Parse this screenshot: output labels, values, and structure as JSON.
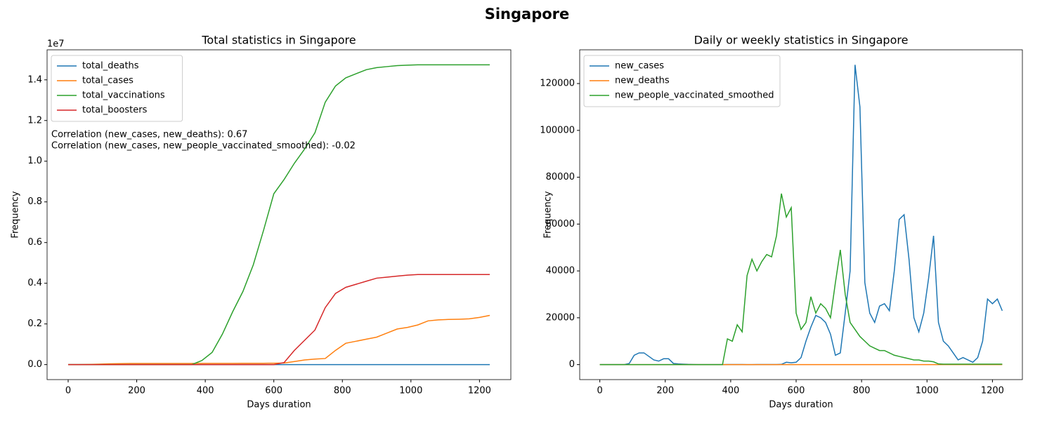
{
  "title": "Singapore",
  "chart_data": [
    {
      "type": "line",
      "title": "Total statistics in Singapore",
      "xlabel": "Days duration",
      "ylabel": "Frequency",
      "offset_label": "1e7",
      "legend": "upper left",
      "annotations": [
        "Correlation (new_cases, new_deaths): 0.67",
        "Correlation (new_cases, new_people_vaccinated_smoothed): -0.02"
      ],
      "x": [
        0,
        30,
        60,
        90,
        120,
        150,
        180,
        210,
        240,
        270,
        300,
        330,
        360,
        390,
        420,
        450,
        480,
        510,
        540,
        570,
        600,
        630,
        660,
        690,
        720,
        750,
        780,
        810,
        840,
        870,
        900,
        930,
        960,
        990,
        1020,
        1050,
        1080,
        1110,
        1140,
        1170,
        1200,
        1230
      ],
      "xlim": [
        -61.5,
        1291.5
      ],
      "xticks": [
        0,
        200,
        400,
        600,
        800,
        1000,
        1200
      ],
      "ylim": [
        -737000,
        15476000
      ],
      "yticks": [
        {
          "value": 0,
          "label": "0.0"
        },
        {
          "value": 2000000,
          "label": "0.2"
        },
        {
          "value": 4000000,
          "label": "0.4"
        },
        {
          "value": 6000000,
          "label": "0.6"
        },
        {
          "value": 8000000,
          "label": "0.8"
        },
        {
          "value": 10000000,
          "label": "1.0"
        },
        {
          "value": 12000000,
          "label": "1.2"
        },
        {
          "value": 14000000,
          "label": "1.4"
        }
      ],
      "series": [
        {
          "name": "total_deaths",
          "color": "#1f77b4",
          "values": [
            0,
            0,
            0,
            0,
            10,
            20,
            25,
            27,
            27,
            28,
            28,
            28,
            28,
            29,
            30,
            32,
            34,
            36,
            40,
            50,
            60,
            100,
            300,
            600,
            800,
            830,
            900,
            1100,
            1300,
            1400,
            1500,
            1550,
            1600,
            1620,
            1650,
            1680,
            1700,
            1710,
            1720,
            1730,
            1740,
            1750
          ]
        },
        {
          "name": "total_cases",
          "color": "#ff7f0e",
          "values": [
            0,
            2000,
            10000,
            20000,
            40000,
            50000,
            57000,
            57500,
            58000,
            58000,
            58000,
            58000,
            58500,
            59000,
            60000,
            61000,
            62000,
            63000,
            65000,
            67000,
            70000,
            80000,
            150000,
            230000,
            270000,
            300000,
            700000,
            1050000,
            1150000,
            1250000,
            1350000,
            1550000,
            1750000,
            1830000,
            1950000,
            2150000,
            2200000,
            2220000,
            2230000,
            2250000,
            2320000,
            2420000
          ]
        },
        {
          "name": "total_vaccinations",
          "color": "#2ca02c",
          "values": [
            0,
            0,
            0,
            0,
            0,
            0,
            0,
            0,
            0,
            0,
            0,
            0,
            0,
            200000,
            600000,
            1500000,
            2600000,
            3600000,
            4900000,
            6600000,
            8400000,
            9100000,
            9900000,
            10600000,
            11400000,
            12900000,
            13700000,
            14100000,
            14300000,
            14500000,
            14600000,
            14650000,
            14700000,
            14720000,
            14740000,
            14740000,
            14740000,
            14740000,
            14740000,
            14740000,
            14740000,
            14740000
          ]
        },
        {
          "name": "total_boosters",
          "color": "#d62728",
          "values": [
            0,
            0,
            0,
            0,
            0,
            0,
            0,
            0,
            0,
            0,
            0,
            0,
            0,
            0,
            0,
            0,
            0,
            0,
            0,
            0,
            0,
            100000,
            700000,
            1200000,
            1700000,
            2800000,
            3500000,
            3800000,
            3950000,
            4100000,
            4250000,
            4300000,
            4350000,
            4400000,
            4430000,
            4430000,
            4430000,
            4430000,
            4430000,
            4430000,
            4430000,
            4430000
          ]
        }
      ]
    },
    {
      "type": "line",
      "title": "Daily or weekly statistics in Singapore",
      "xlabel": "Days duration",
      "ylabel": "Frequency",
      "legend": "upper left",
      "x": [
        0,
        15,
        30,
        45,
        60,
        75,
        90,
        105,
        120,
        135,
        150,
        165,
        180,
        195,
        210,
        225,
        240,
        255,
        270,
        285,
        300,
        315,
        330,
        345,
        360,
        375,
        390,
        405,
        420,
        435,
        450,
        465,
        480,
        495,
        510,
        525,
        540,
        555,
        570,
        585,
        600,
        615,
        630,
        645,
        660,
        675,
        690,
        705,
        720,
        735,
        750,
        765,
        780,
        795,
        810,
        825,
        840,
        855,
        870,
        885,
        900,
        915,
        930,
        945,
        960,
        975,
        990,
        1005,
        1020,
        1035,
        1050,
        1065,
        1080,
        1095,
        1110,
        1125,
        1140,
        1155,
        1170,
        1185,
        1200,
        1215,
        1230
      ],
      "xlim": [
        -61.5,
        1291.5
      ],
      "xticks": [
        0,
        200,
        400,
        600,
        800,
        1000,
        1200
      ],
      "ylim": [
        -6400,
        134400
      ],
      "yticks": [
        0,
        20000,
        40000,
        60000,
        80000,
        100000,
        120000
      ],
      "series": [
        {
          "name": "new_cases",
          "color": "#1f77b4",
          "values": [
            0,
            0,
            0,
            0,
            0,
            0,
            500,
            4000,
            5000,
            5000,
            3500,
            2000,
            1500,
            2500,
            2500,
            500,
            300,
            200,
            100,
            50,
            20,
            20,
            20,
            20,
            20,
            20,
            30,
            30,
            30,
            30,
            20,
            20,
            30,
            50,
            50,
            50,
            50,
            100,
            1000,
            800,
            1000,
            3000,
            10000,
            16000,
            21000,
            20000,
            18000,
            13000,
            4000,
            5000,
            22000,
            40000,
            128000,
            110000,
            35000,
            22000,
            18000,
            25000,
            26000,
            23000,
            40000,
            62000,
            64000,
            45000,
            20000,
            14000,
            22000,
            37000,
            55000,
            18000,
            10000,
            8000,
            5000,
            2000,
            3000,
            2000,
            1000,
            3000,
            10000,
            28000,
            26000,
            28000,
            23000
          ]
        },
        {
          "name": "new_deaths",
          "color": "#ff7f0e",
          "values": [
            0,
            0,
            0,
            0,
            0,
            0,
            0,
            0,
            0,
            0,
            0,
            0,
            0,
            0,
            0,
            0,
            0,
            0,
            0,
            0,
            0,
            0,
            0,
            0,
            0,
            0,
            0,
            0,
            0,
            0,
            0,
            0,
            0,
            0,
            0,
            0,
            0,
            0,
            0,
            0,
            0,
            2,
            5,
            8,
            10,
            12,
            10,
            5,
            3,
            2,
            5,
            8,
            12,
            10,
            5,
            4,
            3,
            4,
            4,
            3,
            4,
            5,
            5,
            3,
            2,
            2,
            3,
            3,
            4,
            2,
            1,
            1,
            1,
            0,
            0,
            0,
            0,
            1,
            1,
            2,
            2,
            2,
            2
          ]
        },
        {
          "name": "new_people_vaccinated_smoothed",
          "color": "#2ca02c",
          "values": [
            0,
            0,
            0,
            0,
            0,
            0,
            0,
            0,
            0,
            0,
            0,
            0,
            0,
            0,
            0,
            0,
            0,
            0,
            0,
            0,
            0,
            0,
            0,
            0,
            0,
            0,
            11000,
            10000,
            17000,
            14000,
            38000,
            45000,
            40000,
            44000,
            47000,
            46000,
            55000,
            73000,
            63000,
            67000,
            22000,
            15000,
            18000,
            29000,
            22000,
            26000,
            24000,
            20000,
            35000,
            49000,
            30000,
            18000,
            15000,
            12000,
            10000,
            8000,
            7000,
            6000,
            6000,
            5000,
            4000,
            3500,
            3000,
            2500,
            2000,
            2000,
            1500,
            1500,
            1200,
            300,
            200,
            200,
            200,
            200,
            200,
            200,
            200,
            200,
            200,
            200,
            200,
            200,
            200
          ]
        }
      ]
    }
  ]
}
